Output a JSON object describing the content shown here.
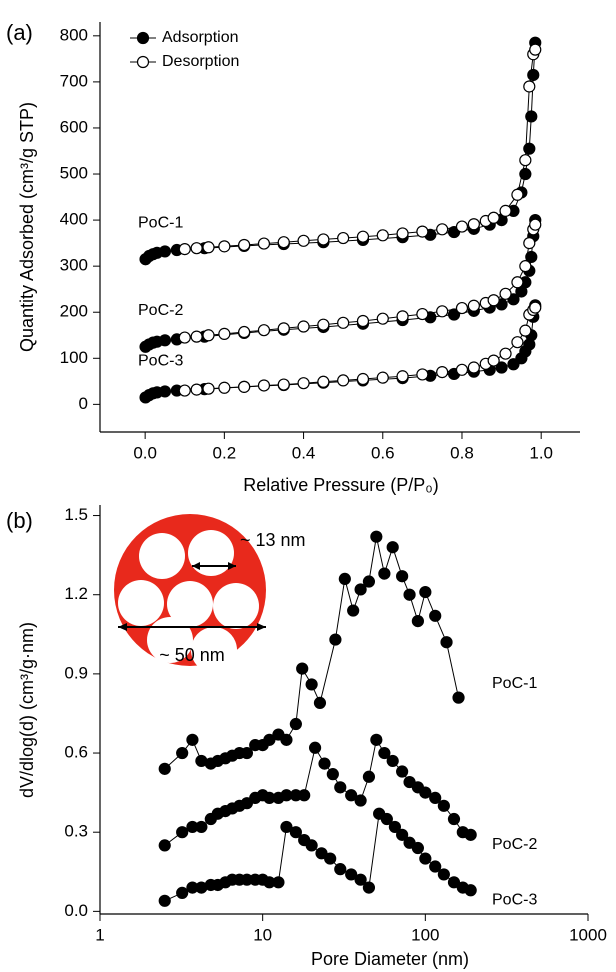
{
  "chart_data": [
    {
      "type": "line",
      "panel_label": "(a)",
      "xlabel": "Relative Pressure (P/P₀)",
      "ylabel": "Quantity Adsorbed (cm³/g STP)",
      "xlim": [
        -0.114,
        1.098
      ],
      "ylim": [
        -60,
        830
      ],
      "xticks": [
        {
          "value": 0,
          "label": "0.0"
        },
        {
          "value": 0.2,
          "label": "0.2"
        },
        {
          "value": 0.4,
          "label": "0.4"
        },
        {
          "value": 0.6,
          "label": "0.6"
        },
        {
          "value": 0.8,
          "label": "0.8"
        },
        {
          "value": 1,
          "label": "1.0"
        }
      ],
      "yticks": [
        0,
        100,
        200,
        300,
        400,
        500,
        600,
        700,
        800
      ],
      "legend": "upper left",
      "series": [
        {
          "name": "Adsorption",
          "marker": "filled",
          "color": "#000000"
        },
        {
          "name": "Desorption",
          "marker": "open",
          "color": "#000000"
        }
      ],
      "samples": [
        {
          "label": "PoC-1",
          "adsorption": {
            "x": [
              0.001,
              0.01,
              0.02,
              0.03,
              0.05,
              0.08,
              0.15,
              0.25,
              0.35,
              0.45,
              0.55,
              0.65,
              0.72,
              0.78,
              0.83,
              0.87,
              0.9,
              0.93,
              0.95,
              0.96,
              0.97,
              0.975,
              0.98,
              0.985
            ],
            "values": [
              315,
              322,
              326,
              329,
              332,
              335,
              339,
              344,
              348,
              352,
              357,
              363,
              368,
              374,
              381,
              390,
              400,
              420,
              460,
              500,
              555,
              625,
              715,
              785
            ]
          },
          "desorption": {
            "x": [
              0.1,
              0.13,
              0.16,
              0.2,
              0.25,
              0.3,
              0.35,
              0.4,
              0.45,
              0.5,
              0.55,
              0.6,
              0.65,
              0.7,
              0.75,
              0.8,
              0.83,
              0.86,
              0.88,
              0.91,
              0.94,
              0.96,
              0.97,
              0.98,
              0.985
            ],
            "values": [
              337,
              339,
              341,
              343,
              346,
              349,
              352,
              355,
              358,
              361,
              364,
              367,
              371,
              375,
              380,
              386,
              391,
              398,
              405,
              420,
              455,
              530,
              690,
              760,
              770
            ]
          }
        },
        {
          "label": "PoC-2",
          "adsorption": {
            "x": [
              0.001,
              0.01,
              0.02,
              0.03,
              0.05,
              0.08,
              0.15,
              0.25,
              0.35,
              0.45,
              0.55,
              0.65,
              0.72,
              0.78,
              0.83,
              0.87,
              0.9,
              0.93,
              0.95,
              0.96,
              0.97,
              0.975,
              0.98,
              0.985
            ],
            "values": [
              125,
              130,
              134,
              136,
              139,
              141,
              147,
              155,
              162,
              168,
              175,
              183,
              189,
              195,
              203,
              210,
              217,
              228,
              245,
              265,
              290,
              320,
              365,
              400
            ]
          },
          "desorption": {
            "x": [
              0.1,
              0.13,
              0.16,
              0.2,
              0.25,
              0.3,
              0.35,
              0.4,
              0.45,
              0.5,
              0.55,
              0.6,
              0.65,
              0.7,
              0.75,
              0.8,
              0.83,
              0.86,
              0.88,
              0.91,
              0.94,
              0.96,
              0.97,
              0.98,
              0.985
            ],
            "values": [
              145,
              147,
              150,
              153,
              157,
              161,
              165,
              169,
              173,
              177,
              181,
              186,
              191,
              196,
              202,
              209,
              214,
              220,
              226,
              240,
              265,
              300,
              350,
              380,
              390
            ]
          }
        },
        {
          "label": "PoC-3",
          "adsorption": {
            "x": [
              0.001,
              0.01,
              0.02,
              0.03,
              0.05,
              0.08,
              0.15,
              0.25,
              0.35,
              0.45,
              0.55,
              0.65,
              0.72,
              0.78,
              0.83,
              0.87,
              0.9,
              0.93,
              0.95,
              0.96,
              0.97,
              0.975,
              0.98,
              0.985
            ],
            "values": [
              15,
              20,
              24,
              26,
              28,
              30,
              33,
              38,
              42,
              47,
              52,
              57,
              62,
              66,
              71,
              75,
              80,
              87,
              100,
              115,
              130,
              150,
              190,
              215
            ]
          },
          "desorption": {
            "x": [
              0.1,
              0.13,
              0.16,
              0.2,
              0.25,
              0.3,
              0.35,
              0.4,
              0.45,
              0.5,
              0.55,
              0.6,
              0.65,
              0.7,
              0.75,
              0.8,
              0.83,
              0.86,
              0.88,
              0.91,
              0.94,
              0.96,
              0.97,
              0.98,
              0.985
            ],
            "values": [
              30,
              32,
              34,
              36,
              38,
              41,
              43,
              46,
              49,
              52,
              55,
              58,
              61,
              65,
              70,
              75,
              80,
              88,
              95,
              110,
              135,
              160,
              195,
              205,
              210
            ]
          }
        }
      ]
    },
    {
      "type": "line",
      "panel_label": "(b)",
      "xlabel": "Pore Diameter (nm)",
      "ylabel": "dV/dlog(d) (cm³/g·nm)",
      "xscale": "log",
      "xlim": [
        1,
        1000
      ],
      "ylim": [
        -0.01,
        1.54
      ],
      "xticks": [
        1,
        10,
        100,
        1000
      ],
      "yticks": [
        {
          "value": 0,
          "label": "0.0"
        },
        {
          "value": 0.3,
          "label": "0.3"
        },
        {
          "value": 0.6,
          "label": "0.6"
        },
        {
          "value": 0.9,
          "label": "0.9"
        },
        {
          "value": 1.2,
          "label": "1.2"
        },
        {
          "value": 1.5,
          "label": "1.5"
        }
      ],
      "annotations": [
        "~ 13 nm",
        "~ 50 nm"
      ],
      "series": [
        {
          "name": "PoC-1",
          "color": "#000000",
          "x": [
            2.5,
            3.2,
            3.7,
            4.2,
            4.8,
            5.3,
            5.9,
            6.5,
            7.2,
            8,
            9,
            10,
            11,
            12.5,
            14,
            16,
            17.5,
            20,
            22.5,
            28,
            32,
            36,
            40,
            45,
            50,
            56,
            63,
            72,
            80,
            90,
            100,
            115,
            135,
            160
          ],
          "values": [
            0.54,
            0.6,
            0.65,
            0.57,
            0.56,
            0.57,
            0.58,
            0.59,
            0.6,
            0.6,
            0.63,
            0.63,
            0.65,
            0.67,
            0.65,
            0.71,
            0.92,
            0.86,
            0.79,
            1.03,
            1.26,
            1.14,
            1.22,
            1.25,
            1.42,
            1.28,
            1.38,
            1.27,
            1.2,
            1.1,
            1.21,
            1.12,
            1.02,
            0.81
          ]
        },
        {
          "name": "PoC-2",
          "color": "#000000",
          "x": [
            2.5,
            3.2,
            3.7,
            4.2,
            4.8,
            5.3,
            5.9,
            6.5,
            7.2,
            8,
            9,
            10,
            11,
            12.5,
            14,
            16,
            18,
            21,
            24,
            27,
            30,
            35,
            40,
            45,
            50,
            56,
            63,
            72,
            80,
            90,
            100,
            115,
            130,
            150,
            170,
            190
          ],
          "values": [
            0.25,
            0.3,
            0.32,
            0.32,
            0.35,
            0.37,
            0.38,
            0.39,
            0.4,
            0.41,
            0.43,
            0.44,
            0.43,
            0.43,
            0.44,
            0.44,
            0.44,
            0.62,
            0.56,
            0.52,
            0.47,
            0.44,
            0.42,
            0.51,
            0.65,
            0.6,
            0.57,
            0.53,
            0.49,
            0.47,
            0.45,
            0.43,
            0.4,
            0.35,
            0.3,
            0.29
          ]
        },
        {
          "name": "PoC-3",
          "color": "#000000",
          "x": [
            2.5,
            3.2,
            3.7,
            4.2,
            4.8,
            5.3,
            5.9,
            6.5,
            7.2,
            8,
            9,
            10,
            11,
            12.5,
            14,
            16,
            18,
            20,
            23,
            26,
            30,
            35,
            40,
            45,
            52,
            58,
            65,
            72,
            80,
            90,
            100,
            115,
            130,
            150,
            170,
            190
          ],
          "values": [
            0.04,
            0.07,
            0.09,
            0.09,
            0.1,
            0.1,
            0.11,
            0.12,
            0.12,
            0.12,
            0.12,
            0.12,
            0.11,
            0.11,
            0.32,
            0.3,
            0.27,
            0.25,
            0.22,
            0.2,
            0.16,
            0.14,
            0.12,
            0.09,
            0.37,
            0.35,
            0.32,
            0.29,
            0.26,
            0.24,
            0.2,
            0.17,
            0.14,
            0.11,
            0.09,
            0.08
          ]
        }
      ]
    }
  ]
}
